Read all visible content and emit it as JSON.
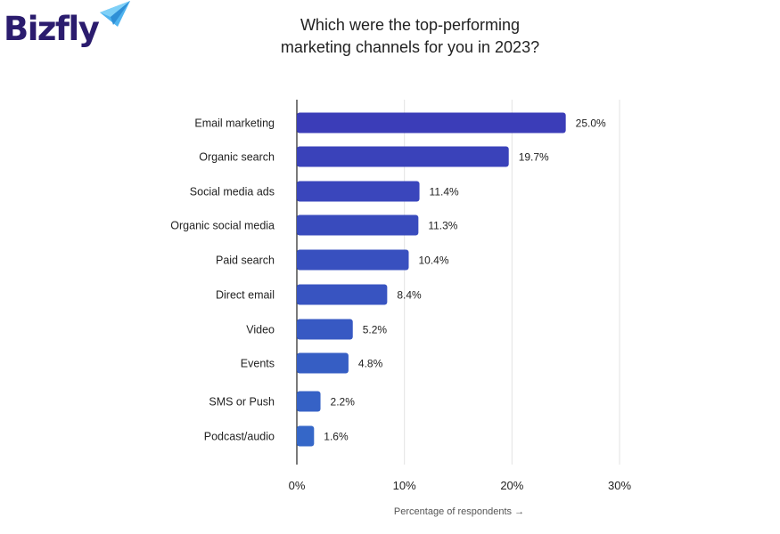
{
  "logo": {
    "text": "Bizfly",
    "icon": "paper-plane-icon"
  },
  "chart_data": {
    "type": "bar",
    "orientation": "horizontal",
    "title_lines": [
      "Which were the top-performing",
      "marketing channels for you in 2023?"
    ],
    "categories": [
      "Email marketing",
      "Organic search",
      "Social media ads",
      "Organic social media",
      "Paid search",
      "Direct email",
      "Video",
      "Events",
      "SMS or Push",
      "Podcast/audio"
    ],
    "values": [
      25.0,
      19.7,
      11.4,
      11.3,
      10.4,
      8.4,
      5.2,
      4.8,
      2.2,
      1.6
    ],
    "value_labels": [
      "25.0%",
      "19.7%",
      "11.4%",
      "11.3%",
      "10.4%",
      "8.4%",
      "5.2%",
      "4.8%",
      "2.2%",
      "1.6%"
    ],
    "xlim": [
      0,
      30
    ],
    "xticks": [
      0,
      10,
      20,
      30
    ],
    "xtick_labels": [
      "0%",
      "10%",
      "20%",
      "30%"
    ],
    "xlabel": "Percentage of respondents →",
    "grid": "vertical",
    "colors": {
      "bar_top": "#3b3db8",
      "bar_bottom": "#3567c8",
      "grid": "#e3e3e3",
      "axis": "#222222"
    }
  }
}
